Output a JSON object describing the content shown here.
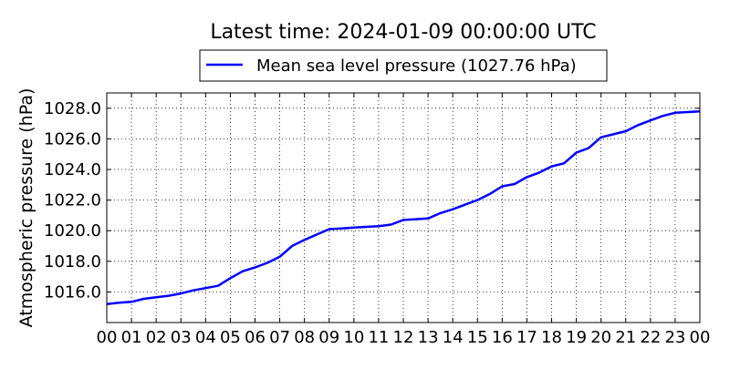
{
  "chart_data": {
    "type": "line",
    "title": "Latest time: 2024-01-09 00:00:00 UTC",
    "xlabel": "",
    "ylabel": "Atmospheric pressure (hPa)",
    "x_tick_labels": [
      "00",
      "01",
      "02",
      "03",
      "04",
      "05",
      "06",
      "07",
      "08",
      "09",
      "10",
      "11",
      "12",
      "13",
      "14",
      "15",
      "16",
      "17",
      "18",
      "19",
      "20",
      "21",
      "22",
      "23",
      "00"
    ],
    "y_ticks": [
      1016.0,
      1018.0,
      1020.0,
      1022.0,
      1024.0,
      1026.0,
      1028.0
    ],
    "y_tick_labels": [
      "1016.0",
      "1018.0",
      "1020.0",
      "1022.0",
      "1024.0",
      "1026.0",
      "1028.0"
    ],
    "xlim": [
      0,
      24
    ],
    "ylim": [
      1014.0,
      1029.0
    ],
    "grid": true,
    "legend_position": "top-center, above plot",
    "series": [
      {
        "name": "Mean sea level pressure (1027.76 hPa)",
        "color": "#0000ff",
        "x": [
          0,
          0.5,
          1,
          1.5,
          2,
          2.5,
          3,
          3.5,
          4,
          4.5,
          5,
          5.5,
          6,
          6.5,
          7,
          7.5,
          8,
          8.5,
          9,
          9.5,
          10,
          10.5,
          11,
          11.5,
          12,
          12.5,
          13,
          13.5,
          14,
          14.5,
          15,
          15.5,
          16,
          16.5,
          17,
          17.5,
          18,
          18.5,
          19,
          19.5,
          20,
          20.5,
          21,
          21.5,
          22,
          22.5,
          23,
          23.5,
          24
        ],
        "y": [
          1015.2,
          1015.3,
          1015.35,
          1015.55,
          1015.65,
          1015.75,
          1015.9,
          1016.1,
          1016.25,
          1016.4,
          1016.9,
          1017.35,
          1017.6,
          1017.9,
          1018.3,
          1019.0,
          1019.4,
          1019.75,
          1020.1,
          1020.15,
          1020.2,
          1020.25,
          1020.3,
          1020.4,
          1020.7,
          1020.75,
          1020.8,
          1021.15,
          1021.4,
          1021.7,
          1022.0,
          1022.4,
          1022.9,
          1023.05,
          1023.5,
          1023.8,
          1024.2,
          1024.4,
          1025.1,
          1025.4,
          1026.1,
          1026.3,
          1026.5,
          1026.9,
          1027.2,
          1027.5,
          1027.7,
          1027.75,
          1027.8
        ]
      }
    ]
  }
}
